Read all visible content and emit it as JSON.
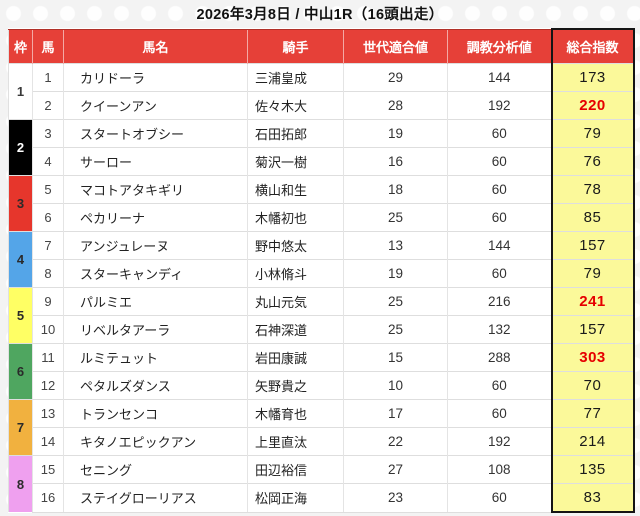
{
  "page": {
    "title": "2026年3月8日 / 中山1R（16頭出走）"
  },
  "table": {
    "columns": [
      "枠",
      "馬",
      "馬名",
      "騎手",
      "世代適合値",
      "調教分析値",
      "総合指数"
    ],
    "frames": [
      {
        "num": "1",
        "bg": "#ffffff",
        "fg": "#3a3a3a"
      },
      {
        "num": "2",
        "bg": "#000000",
        "fg": "#ffffff"
      },
      {
        "num": "3",
        "bg": "#e6362c",
        "fg": "#2a2a2a"
      },
      {
        "num": "4",
        "bg": "#54a5e8",
        "fg": "#2a2a2a"
      },
      {
        "num": "5",
        "bg": "#ffff64",
        "fg": "#2a2a2a"
      },
      {
        "num": "6",
        "bg": "#4fa660",
        "fg": "#2a2a2a"
      },
      {
        "num": "7",
        "bg": "#f1b13f",
        "fg": "#2a2a2a"
      },
      {
        "num": "8",
        "bg": "#efa0ef",
        "fg": "#2a2a2a"
      }
    ],
    "rows": [
      {
        "num": "1",
        "name": "カリドーラ",
        "jockey": "三浦皇成",
        "gen": "29",
        "train": "144",
        "index": "173",
        "hot": false
      },
      {
        "num": "2",
        "name": "クイーンアン",
        "jockey": "佐々木大",
        "gen": "28",
        "train": "192",
        "index": "220",
        "hot": true
      },
      {
        "num": "3",
        "name": "スタートオブシー",
        "jockey": "石田拓郎",
        "gen": "19",
        "train": "60",
        "index": "79",
        "hot": false
      },
      {
        "num": "4",
        "name": "サーロー",
        "jockey": "菊沢一樹",
        "gen": "16",
        "train": "60",
        "index": "76",
        "hot": false
      },
      {
        "num": "5",
        "name": "マコトアタキギリ",
        "jockey": "横山和生",
        "gen": "18",
        "train": "60",
        "index": "78",
        "hot": false
      },
      {
        "num": "6",
        "name": "ペカリーナ",
        "jockey": "木幡初也",
        "gen": "25",
        "train": "60",
        "index": "85",
        "hot": false
      },
      {
        "num": "7",
        "name": "アンジュレーヌ",
        "jockey": "野中悠太",
        "gen": "13",
        "train": "144",
        "index": "157",
        "hot": false
      },
      {
        "num": "8",
        "name": "スターキャンディ",
        "jockey": "小林脩斗",
        "gen": "19",
        "train": "60",
        "index": "79",
        "hot": false
      },
      {
        "num": "9",
        "name": "パルミエ",
        "jockey": "丸山元気",
        "gen": "25",
        "train": "216",
        "index": "241",
        "hot": true
      },
      {
        "num": "10",
        "name": "リベルタアーラ",
        "jockey": "石神深道",
        "gen": "25",
        "train": "132",
        "index": "157",
        "hot": false
      },
      {
        "num": "11",
        "name": "ルミテュット",
        "jockey": "岩田康誠",
        "gen": "15",
        "train": "288",
        "index": "303",
        "hot": true
      },
      {
        "num": "12",
        "name": "ペタルズダンス",
        "jockey": "矢野貴之",
        "gen": "10",
        "train": "60",
        "index": "70",
        "hot": false
      },
      {
        "num": "13",
        "name": "トランセンコ",
        "jockey": "木幡育也",
        "gen": "17",
        "train": "60",
        "index": "77",
        "hot": false
      },
      {
        "num": "14",
        "name": "キタノエピックアン",
        "jockey": "上里直汰",
        "gen": "22",
        "train": "192",
        "index": "214",
        "hot": false
      },
      {
        "num": "15",
        "name": "セニング",
        "jockey": "田辺裕信",
        "gen": "27",
        "train": "108",
        "index": "135",
        "hot": false
      },
      {
        "num": "16",
        "name": "ステイグローリアス",
        "jockey": "松岡正海",
        "gen": "23",
        "train": "60",
        "index": "83",
        "hot": false
      }
    ]
  },
  "colors": {
    "header_bg": "#e64038",
    "index_cell_bg": "#fbf99a",
    "hot_value": "#e60000",
    "column_outline": "#141414"
  }
}
